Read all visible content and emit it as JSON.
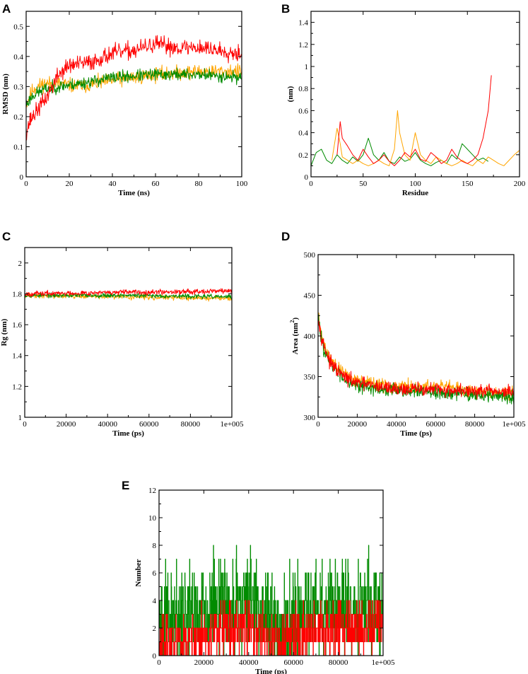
{
  "colors": {
    "red": "#ff0000",
    "orange": "#ffa500",
    "green": "#008b00"
  },
  "chart_data": [
    {
      "id": "A",
      "letter": "A",
      "type": "line",
      "xlabel": "Time (ns)",
      "ylabel": "RMSD (nm)",
      "xlim": [
        0,
        100
      ],
      "ylim": [
        0,
        0.55
      ],
      "xticks": [
        0,
        20,
        40,
        60,
        80,
        100
      ],
      "xtick_labels": [
        "0",
        "20",
        "40",
        "60",
        "80",
        "100"
      ],
      "yticks": [
        0,
        0.1,
        0.2,
        0.3,
        0.4,
        0.5
      ],
      "ytick_labels": [
        "0",
        "0.1",
        "0.2",
        "0.3",
        "0.4",
        "0.5"
      ],
      "noise_points": 500,
      "series": [
        {
          "name": "orange",
          "color": "orange",
          "noise": 0.012,
          "seed": 11,
          "x": [
            0,
            3,
            8,
            15,
            25,
            40,
            60,
            80,
            100
          ],
          "y": [
            0.24,
            0.29,
            0.31,
            0.31,
            0.3,
            0.32,
            0.34,
            0.35,
            0.35
          ]
        },
        {
          "name": "green",
          "color": "green",
          "noise": 0.01,
          "seed": 23,
          "x": [
            0,
            3,
            8,
            15,
            25,
            40,
            60,
            80,
            100
          ],
          "y": [
            0.24,
            0.27,
            0.29,
            0.3,
            0.31,
            0.33,
            0.34,
            0.34,
            0.33
          ]
        },
        {
          "name": "red",
          "color": "red",
          "noise": 0.014,
          "seed": 37,
          "x": [
            0,
            2,
            5,
            10,
            15,
            20,
            30,
            40,
            50,
            60,
            70,
            80,
            90,
            100
          ],
          "y": [
            0.15,
            0.19,
            0.22,
            0.27,
            0.34,
            0.37,
            0.38,
            0.41,
            0.42,
            0.44,
            0.43,
            0.43,
            0.42,
            0.41
          ]
        }
      ]
    },
    {
      "id": "B",
      "letter": "B",
      "type": "line",
      "xlabel": "Residue",
      "ylabel": "(nm)",
      "xlim": [
        0,
        200
      ],
      "ylim": [
        0,
        1.5
      ],
      "xticks": [
        0,
        50,
        100,
        150,
        200
      ],
      "xtick_labels": [
        "0",
        "50",
        "100",
        "150",
        "200"
      ],
      "yticks": [
        0,
        0.2,
        0.4,
        0.6,
        0.8,
        1,
        1.2,
        1.4
      ],
      "ytick_labels": [
        "0",
        "0.2",
        "0.4",
        "0.6",
        "0.8",
        "1",
        "1.2",
        "1.4"
      ],
      "noise_points": 0,
      "series": [
        {
          "name": "green",
          "color": "green",
          "noise": 0,
          "seed": 0,
          "x": [
            0,
            5,
            10,
            15,
            20,
            25,
            30,
            35,
            40,
            45,
            50,
            55,
            60,
            65,
            70,
            75,
            80,
            85,
            90,
            95,
            100,
            105,
            110,
            115,
            120,
            125,
            130,
            135,
            140,
            145,
            150,
            155,
            160,
            165,
            170
          ],
          "y": [
            0.1,
            0.22,
            0.25,
            0.15,
            0.12,
            0.2,
            0.15,
            0.12,
            0.18,
            0.14,
            0.2,
            0.35,
            0.2,
            0.15,
            0.22,
            0.14,
            0.12,
            0.18,
            0.14,
            0.16,
            0.22,
            0.15,
            0.12,
            0.1,
            0.13,
            0.15,
            0.12,
            0.2,
            0.16,
            0.3,
            0.25,
            0.2,
            0.15,
            0.17,
            0.14
          ]
        },
        {
          "name": "orange",
          "color": "orange",
          "noise": 0,
          "seed": 0,
          "x": [
            20,
            25,
            28,
            30,
            35,
            40,
            45,
            50,
            55,
            60,
            65,
            70,
            75,
            80,
            83,
            85,
            90,
            95,
            100,
            105,
            110,
            115,
            120,
            125,
            130,
            135,
            140,
            145,
            150,
            155,
            160,
            165,
            170,
            175,
            180,
            185,
            190,
            195,
            200
          ],
          "y": [
            0.15,
            0.44,
            0.3,
            0.18,
            0.15,
            0.12,
            0.15,
            0.12,
            0.1,
            0.12,
            0.15,
            0.12,
            0.1,
            0.25,
            0.6,
            0.4,
            0.2,
            0.15,
            0.4,
            0.2,
            0.15,
            0.12,
            0.18,
            0.15,
            0.12,
            0.1,
            0.12,
            0.15,
            0.12,
            0.1,
            0.15,
            0.12,
            0.18,
            0.15,
            0.12,
            0.1,
            0.15,
            0.2,
            0.24
          ]
        },
        {
          "name": "red",
          "color": "red",
          "noise": 0,
          "seed": 0,
          "x": [
            25,
            28,
            30,
            35,
            40,
            45,
            50,
            55,
            60,
            65,
            70,
            75,
            80,
            85,
            90,
            95,
            100,
            105,
            110,
            115,
            120,
            125,
            130,
            135,
            140,
            145,
            150,
            155,
            160,
            165,
            170,
            173
          ],
          "y": [
            0.2,
            0.5,
            0.35,
            0.28,
            0.2,
            0.15,
            0.25,
            0.18,
            0.12,
            0.15,
            0.2,
            0.14,
            0.1,
            0.15,
            0.22,
            0.18,
            0.25,
            0.16,
            0.14,
            0.22,
            0.18,
            0.12,
            0.15,
            0.25,
            0.18,
            0.14,
            0.12,
            0.15,
            0.2,
            0.35,
            0.6,
            0.92
          ]
        }
      ]
    },
    {
      "id": "C",
      "letter": "C",
      "type": "line",
      "xlabel": "Time (ps)",
      "ylabel": "Rg (nm)",
      "xlim": [
        0,
        100000
      ],
      "ylim": [
        1,
        2.1
      ],
      "xticks": [
        0,
        20000,
        40000,
        60000,
        80000,
        100000
      ],
      "xtick_labels": [
        "0",
        "20000",
        "40000",
        "60000",
        "80000",
        "1e+005"
      ],
      "yticks": [
        1,
        1.2,
        1.4,
        1.6,
        1.8,
        2
      ],
      "ytick_labels": [
        "1",
        "1.2",
        "1.4",
        "1.6",
        "1.8",
        "2"
      ],
      "noise_points": 500,
      "series": [
        {
          "name": "orange",
          "color": "orange",
          "noise": 0.008,
          "seed": 41,
          "x": [
            0,
            50000,
            100000
          ],
          "y": [
            1.79,
            1.78,
            1.77
          ]
        },
        {
          "name": "green",
          "color": "green",
          "noise": 0.007,
          "seed": 53,
          "x": [
            0,
            50000,
            100000
          ],
          "y": [
            1.79,
            1.79,
            1.78
          ]
        },
        {
          "name": "red",
          "color": "red",
          "noise": 0.008,
          "seed": 67,
          "x": [
            0,
            50000,
            100000
          ],
          "y": [
            1.8,
            1.81,
            1.82
          ]
        }
      ]
    },
    {
      "id": "D",
      "letter": "D",
      "type": "line",
      "xlabel": "Time (ps)",
      "ylabel": "Area (nm²)",
      "ylabel_main": "Area (nm",
      "ylabel_sup": "2",
      "ylabel_close": ")",
      "xlim": [
        0,
        100000
      ],
      "ylim": [
        300,
        500
      ],
      "xticks": [
        0,
        20000,
        40000,
        60000,
        80000,
        100000
      ],
      "xtick_labels": [
        "0",
        "20000",
        "40000",
        "60000",
        "80000",
        "1e+005"
      ],
      "yticks": [
        300,
        350,
        400,
        450,
        500
      ],
      "ytick_labels": [
        "300",
        "350",
        "400",
        "450",
        "500"
      ],
      "noise_points": 500,
      "series": [
        {
          "name": "orange",
          "color": "orange",
          "noise": 4,
          "seed": 71,
          "x": [
            0,
            1000,
            3000,
            6000,
            10000,
            15000,
            20000,
            30000,
            40000,
            60000,
            80000,
            100000
          ],
          "y": [
            430,
            410,
            390,
            372,
            360,
            352,
            345,
            340,
            337,
            338,
            333,
            330
          ]
        },
        {
          "name": "green",
          "color": "green",
          "noise": 4,
          "seed": 83,
          "x": [
            0,
            1000,
            3000,
            6000,
            10000,
            15000,
            20000,
            30000,
            40000,
            60000,
            80000,
            100000
          ],
          "y": [
            425,
            405,
            385,
            365,
            355,
            345,
            340,
            335,
            333,
            330,
            328,
            325
          ]
        },
        {
          "name": "red",
          "color": "red",
          "noise": 4,
          "seed": 97,
          "x": [
            0,
            1000,
            3000,
            6000,
            10000,
            15000,
            20000,
            30000,
            40000,
            60000,
            80000,
            100000
          ],
          "y": [
            425,
            408,
            388,
            368,
            356,
            347,
            342,
            338,
            335,
            334,
            332,
            331
          ]
        }
      ]
    },
    {
      "id": "E",
      "letter": "E",
      "type": "line",
      "xlabel": "Time (ps)",
      "ylabel": "Number",
      "xlim": [
        0,
        100000
      ],
      "ylim": [
        0,
        12
      ],
      "xticks": [
        0,
        20000,
        40000,
        60000,
        80000,
        100000
      ],
      "xtick_labels": [
        "0",
        "20000",
        "40000",
        "60000",
        "80000",
        "1e+005"
      ],
      "yticks": [
        0,
        2,
        4,
        6,
        8,
        10,
        12
      ],
      "ytick_labels": [
        "0",
        "2",
        "4",
        "6",
        "8",
        "10",
        "12"
      ],
      "noise_points": 800,
      "discrete": true,
      "series": [
        {
          "name": "green",
          "color": "green",
          "noise": 1.8,
          "seed": 101,
          "max": 9,
          "x": [
            0,
            10000,
            20000,
            30000,
            40000,
            47000,
            52000,
            56000,
            65000,
            80000,
            100000
          ],
          "y": [
            2.5,
            3,
            3.5,
            3.5,
            4,
            3.5,
            2,
            2,
            3.5,
            3.5,
            3.5
          ]
        },
        {
          "name": "red",
          "color": "red",
          "noise": 1.0,
          "seed": 113,
          "max": 4,
          "x": [
            0,
            10000,
            20000,
            40000,
            50000,
            60000,
            80000,
            100000
          ],
          "y": [
            1,
            1,
            1.5,
            2,
            1,
            1.5,
            2,
            2
          ]
        }
      ]
    }
  ]
}
